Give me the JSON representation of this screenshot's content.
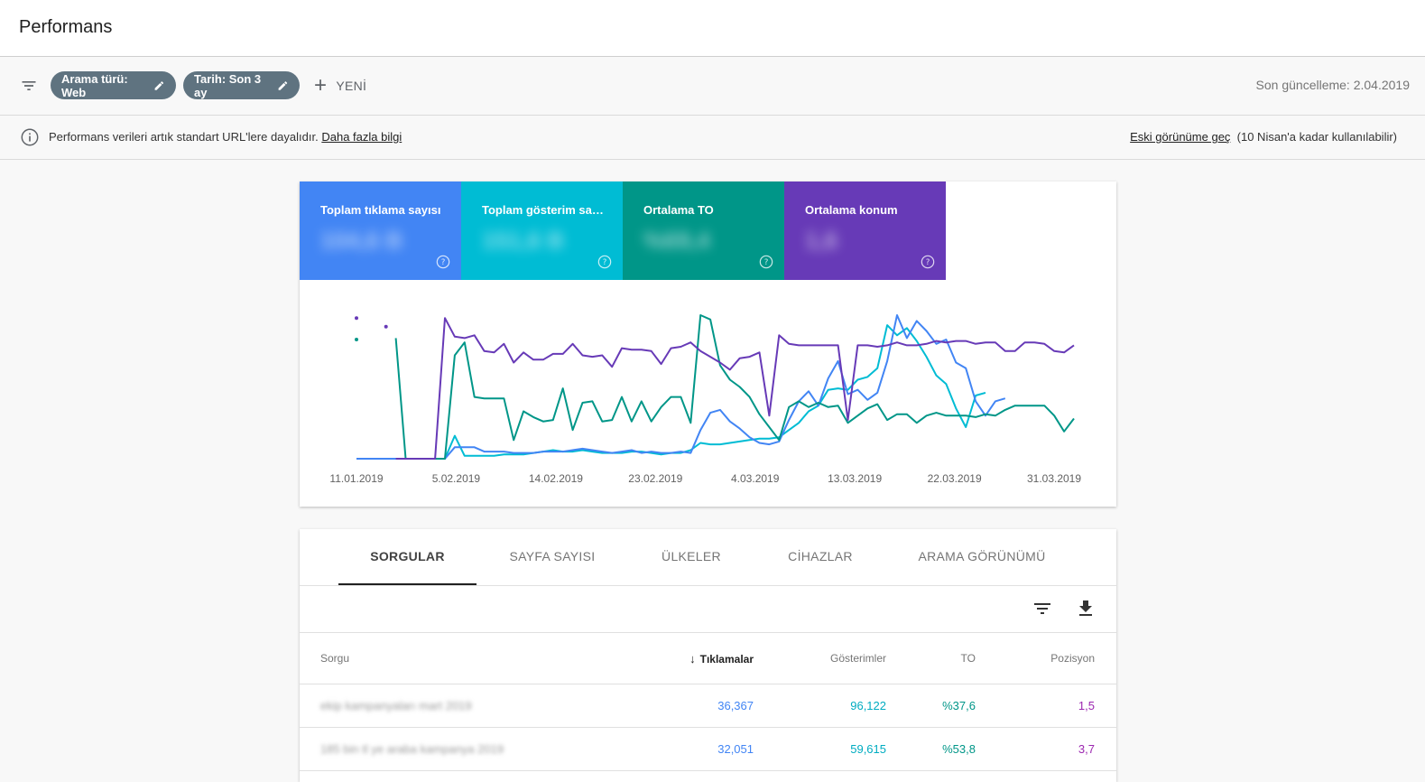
{
  "header": {
    "title": "Performans"
  },
  "filters": {
    "chips": [
      {
        "label": "Arama türü: Web"
      },
      {
        "label": "Tarih: Son 3 ay"
      }
    ],
    "new_label": "YENİ",
    "last_updated": "Son güncelleme: 2.04.2019"
  },
  "info": {
    "text": "Performans verileri artık standart URL'lere dayalıdır.",
    "link": "Daha fazla bilgi",
    "old_view_link": "Eski görünüme geç",
    "old_view_note": "(10 Nisan'a kadar kullanılabilir)"
  },
  "metrics": [
    {
      "label": "Toplam tıklama sayısı",
      "value": "104,6 B",
      "color": "#4285f4"
    },
    {
      "label": "Toplam gösterim sayısı",
      "value": "151,6 B",
      "color": "#00bcd4"
    },
    {
      "label": "Ortalama TO",
      "value": "%69,4",
      "color": "#009688"
    },
    {
      "label": "Ortalama konum",
      "value": "1,6",
      "color": "#673ab7"
    }
  ],
  "chart_data": {
    "type": "line",
    "x_tick_labels": [
      "11.01.2019",
      "5.02.2019",
      "14.02.2019",
      "23.02.2019",
      "4.03.2019",
      "13.03.2019",
      "22.03.2019",
      "31.03.2019"
    ],
    "y_axis_visible": false,
    "grid": false,
    "series": [
      {
        "color": "#673ab7",
        "values": [
          null,
          null,
          null,
          null,
          0,
          0,
          0,
          0,
          0,
          0.98,
          0.85,
          0.84,
          0.86,
          0.75,
          0.74,
          0.8,
          0.67,
          0.74,
          0.69,
          0.69,
          0.73,
          0.73,
          0.8,
          0.72,
          0.71,
          0.72,
          0.64,
          0.77,
          0.76,
          0.76,
          0.75,
          0.66,
          0.77,
          0.78,
          0.81,
          0.75,
          0.71,
          0.67,
          0.62,
          0.7,
          0.71,
          0.74,
          0.3,
          0.86,
          0.8,
          0.79,
          0.79,
          0.79,
          0.79,
          0.79,
          0.27,
          0.79,
          0.79,
          0.78,
          0.79,
          0.81,
          0.79,
          0.79,
          0.8,
          0.82,
          0.81,
          0.82,
          0.82,
          0.8,
          0.81,
          0.81,
          0.75,
          0.75,
          0.81,
          0.81,
          0.8,
          0.75,
          0.74,
          0.79
        ]
      },
      {
        "color": "#009688",
        "values": [
          null,
          null,
          null,
          null,
          0.84,
          0,
          0,
          0,
          0,
          0,
          0.72,
          0.81,
          0.43,
          0.42,
          0.42,
          0.42,
          0.13,
          0.33,
          0.29,
          0.26,
          0.27,
          0.49,
          0.2,
          0.39,
          0.4,
          0.26,
          0.27,
          0.43,
          0.26,
          0.4,
          0.26,
          0.36,
          0.43,
          0.43,
          0.25,
          1.0,
          0.97,
          0.65,
          0.55,
          0.5,
          0.43,
          0.31,
          0.22,
          0.13,
          0.36,
          0.4,
          0.36,
          0.39,
          0.36,
          0.37,
          0.25,
          0.3,
          0.35,
          0.38,
          0.27,
          0.31,
          0.31,
          0.25,
          0.3,
          0.32,
          0.3,
          0.3,
          0.3,
          0.29,
          0.31,
          0.3,
          0.34,
          0.37,
          0.37,
          0.37,
          0.37,
          0.3,
          0.19,
          0.28
        ]
      },
      {
        "color": "#4285f4",
        "values": [
          0,
          0,
          0,
          0,
          0,
          0,
          0,
          0,
          0,
          0,
          0.08,
          0.08,
          0.08,
          0.05,
          0.05,
          0.05,
          0.04,
          0.04,
          0.04,
          0.05,
          0.05,
          0.05,
          0.06,
          0.07,
          0.06,
          0.05,
          0.04,
          0.05,
          0.06,
          0.04,
          0.05,
          0.04,
          0.04,
          0.05,
          0.04,
          0.2,
          0.32,
          0.34,
          0.26,
          0.21,
          0.15,
          0.11,
          0.1,
          0.12,
          0.27,
          0.4,
          0.47,
          0.37,
          0.56,
          0.68,
          0.45,
          0.48,
          0.41,
          0.46,
          0.68,
          1.0,
          0.84,
          0.96,
          0.89,
          0.8,
          0.83,
          0.67,
          0.63,
          0.4,
          0.3,
          0.4,
          0.42
        ]
      },
      {
        "color": "#00bcd4",
        "values": [
          0,
          0,
          0,
          0,
          0,
          0,
          0,
          0,
          0,
          0,
          0.16,
          0.02,
          0.02,
          0.02,
          0.02,
          0.03,
          0.03,
          0.03,
          0.04,
          0.05,
          0.06,
          0.05,
          0.05,
          0.06,
          0.05,
          0.04,
          0.04,
          0.04,
          0.05,
          0.05,
          0.04,
          0.03,
          0.04,
          0.04,
          0.06,
          0.11,
          0.1,
          0.1,
          0.11,
          0.12,
          0.13,
          0.14,
          0.14,
          0.15,
          0.2,
          0.25,
          0.33,
          0.37,
          0.48,
          0.49,
          0.48,
          0.55,
          0.57,
          0.63,
          0.93,
          0.86,
          0.91,
          0.82,
          0.71,
          0.58,
          0.52,
          0.35,
          0.22,
          0.44,
          0.46
        ]
      }
    ]
  },
  "tabs": [
    {
      "label": "SORGULAR"
    },
    {
      "label": "SAYFA SAYISI"
    },
    {
      "label": "ÜLKELER"
    },
    {
      "label": "CİHAZLAR"
    },
    {
      "label": "ARAMA GÖRÜNÜMÜ"
    }
  ],
  "table": {
    "columns": [
      "Sorgu",
      "Tıklamalar",
      "Gösterimler",
      "TO",
      "Pozisyon"
    ],
    "rows": [
      {
        "query": "ekip kampanyaları mart 2019",
        "clicks": "36,367",
        "impressions": "96,122",
        "ctr": "%37,6",
        "position": "1,5"
      },
      {
        "query": "185 bin tl ye araba kampanya 2019",
        "clicks": "32,051",
        "impressions": "59,615",
        "ctr": "%53,8",
        "position": "3,7"
      }
    ]
  },
  "colors": {
    "clicks": "#4285f4",
    "impressions": "#00bcd4",
    "ctr": "#009688",
    "position": "#9c27b0"
  }
}
